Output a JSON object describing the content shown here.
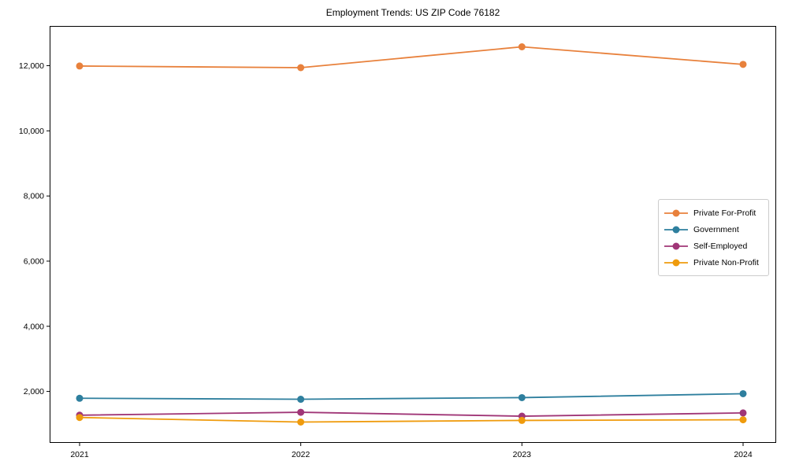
{
  "chart_data": {
    "type": "line",
    "title": "Employment Trends: US ZIP Code 76182",
    "xlabel": "",
    "ylabel": "",
    "grid": false,
    "legend_position": "center-right",
    "axis_color": "#000000",
    "background_color": "#ffffff",
    "x": [
      2021,
      2022,
      2023,
      2024
    ],
    "x_tick_labels": [
      "2021",
      "2022",
      "2023",
      "2024"
    ],
    "yticks": [
      2000,
      4000,
      6000,
      8000,
      10000,
      12000
    ],
    "ytick_labels": [
      "2,000",
      "4,000",
      "6,000",
      "8,000",
      "10,000",
      "12,000"
    ],
    "ylim": [
      420,
      13220
    ],
    "series": [
      {
        "name": "Private For-Profit",
        "color": "#E8813C",
        "values": [
          11990,
          11940,
          12580,
          12040
        ]
      },
      {
        "name": "Government",
        "color": "#2E7F9E",
        "values": [
          1790,
          1760,
          1810,
          1930
        ]
      },
      {
        "name": "Self-Employed",
        "color": "#A03677",
        "values": [
          1270,
          1360,
          1240,
          1340
        ]
      },
      {
        "name": "Private Non-Profit",
        "color": "#EF9B0D",
        "values": [
          1200,
          1060,
          1110,
          1130
        ]
      }
    ]
  }
}
